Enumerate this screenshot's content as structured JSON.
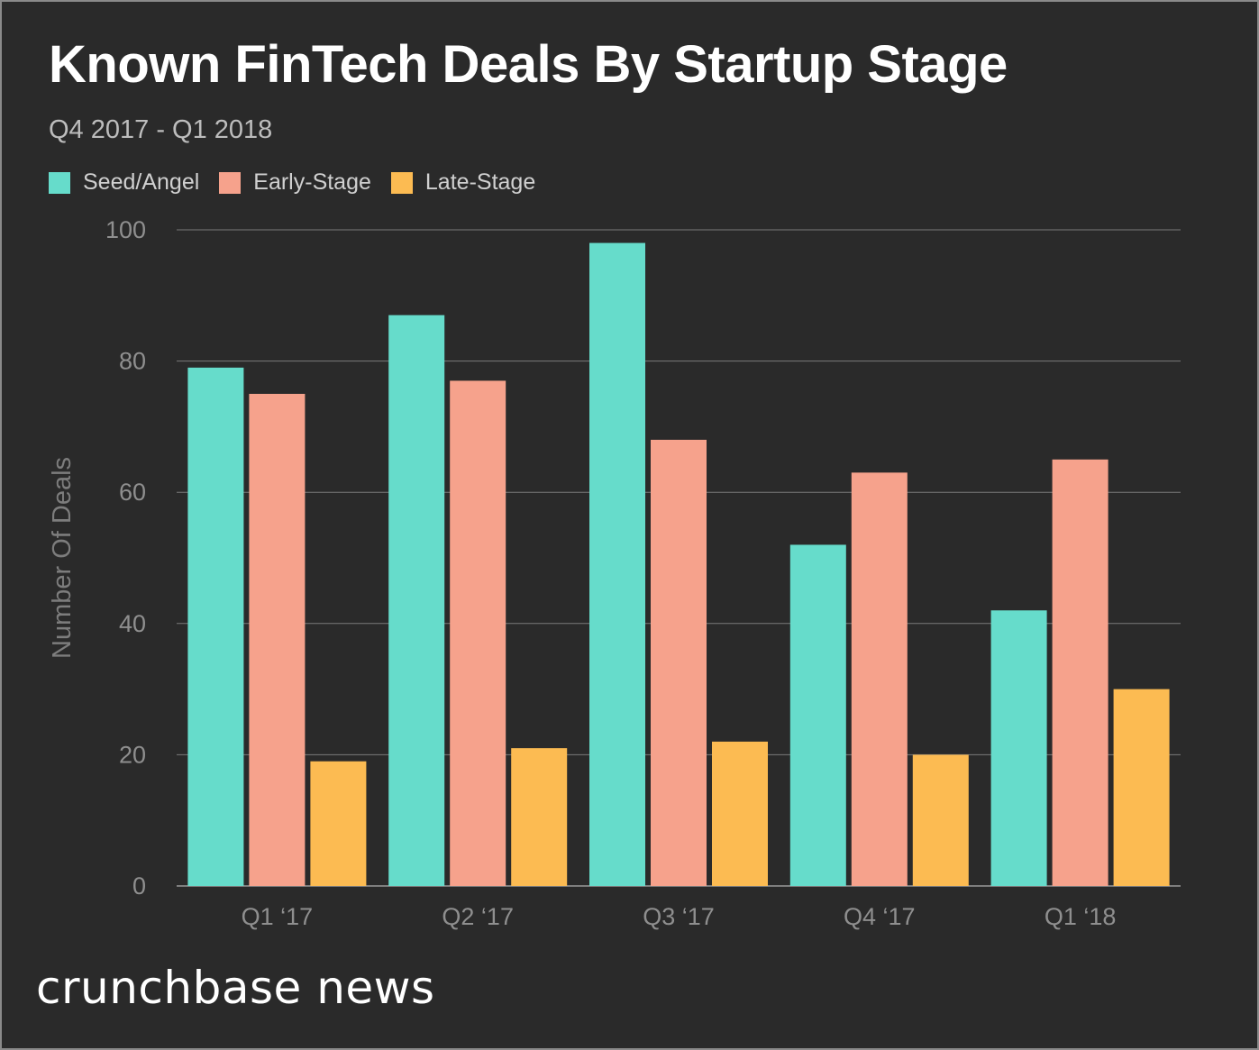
{
  "header": {
    "title": "Known FinTech Deals By Startup Stage",
    "subtitle": "Q4 2017 - Q1 2018"
  },
  "chart_data": {
    "type": "bar",
    "title": "Known FinTech Deals By Startup Stage",
    "subtitle": "Q4 2017 - Q1 2018",
    "xlabel": "",
    "ylabel": "Number Of Deals",
    "ylim": [
      0,
      100
    ],
    "yticks": [
      0,
      20,
      40,
      60,
      80,
      100
    ],
    "grid": true,
    "legend_position": "top-left",
    "categories": [
      "Q1 ‘17",
      "Q2 ‘17",
      "Q3 ‘17",
      "Q4 ‘17",
      "Q1 ‘18"
    ],
    "series": [
      {
        "name": "Seed/Angel",
        "color": "#66dccb",
        "values": [
          79,
          87,
          98,
          52,
          42
        ]
      },
      {
        "name": "Early-Stage",
        "color": "#f6a28c",
        "values": [
          75,
          77,
          68,
          63,
          65
        ]
      },
      {
        "name": "Late-Stage",
        "color": "#fcbb52",
        "values": [
          19,
          21,
          22,
          20,
          30
        ]
      }
    ]
  },
  "footer": {
    "logo_text": "crunchbase news"
  }
}
